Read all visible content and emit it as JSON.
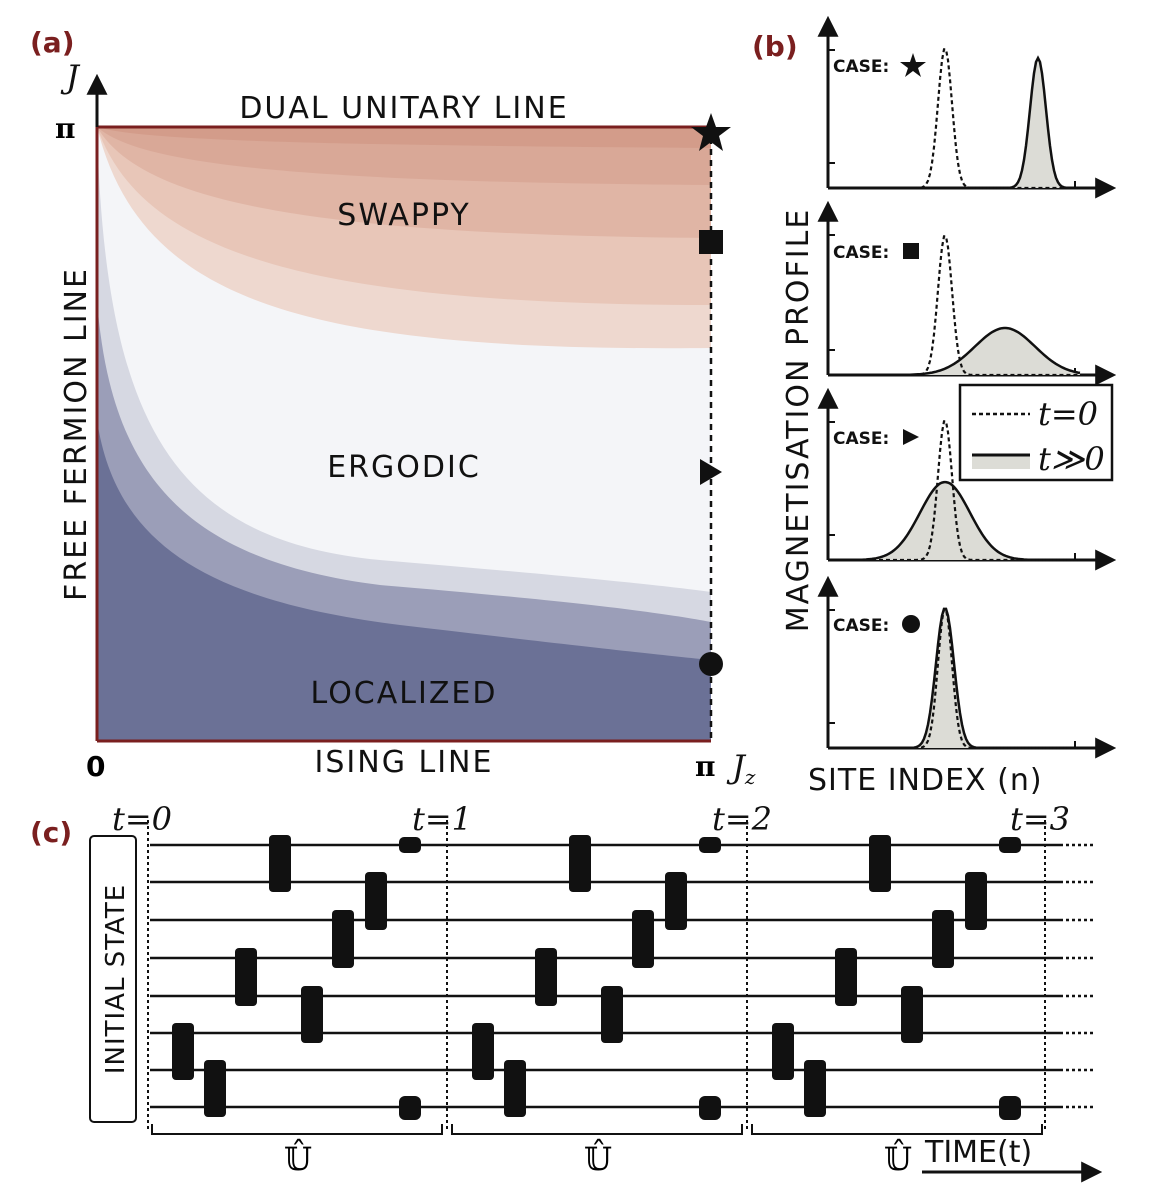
{
  "panel_a": {
    "label": "(a)",
    "y_axis_label": "J",
    "y_top_tick": "π",
    "origin_tick": "0",
    "x_right_tick": "π",
    "x_axis_label": "J",
    "x_axis_subscript": "z",
    "top_line": "DUAL UNITARY LINE",
    "left_line": "FREE FERMION LINE",
    "bottom_line": "ISING LINE",
    "regions": [
      "SWAPPY",
      "ERGODIC",
      "LOCALIZED"
    ]
  },
  "panel_b": {
    "label": "(b)",
    "y_axis_label": "MAGNETISATION PROFILE",
    "x_axis_label": "SITE INDEX (n)",
    "case_labels": [
      "CASE:",
      "CASE:",
      "CASE:",
      "CASE:"
    ],
    "legend": [
      "t=0",
      "t≫0"
    ]
  },
  "panel_c": {
    "label": "(c)",
    "initial_state": "INITIAL STATE",
    "time_labels": [
      "t=0",
      "t=1",
      "t=2",
      "t=3"
    ],
    "period_labels": [
      "𝕌̂",
      "𝕌̂",
      "𝕌̂"
    ],
    "time_axis": "TIME(t)"
  }
}
